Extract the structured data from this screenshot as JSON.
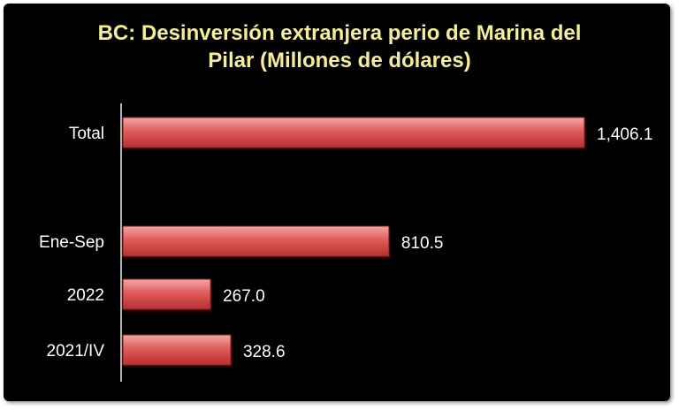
{
  "chart_data": {
    "type": "bar",
    "orientation": "horizontal",
    "title_lines": [
      "BC: Desinversión extranjera perio de Marina del",
      "Pilar  (Millones de dólares)"
    ],
    "categories": [
      "Total",
      "Ene-Sep",
      "2022",
      "2021/IV"
    ],
    "values": [
      1406.1,
      810.5,
      267.0,
      328.6
    ],
    "value_labels": [
      "1,406.1",
      "810.5",
      "267.0",
      "328.6"
    ],
    "xlim": [
      0,
      1406.1
    ],
    "grid": false,
    "legend": "none",
    "colors": {
      "background": "#000000",
      "title": "#f4ee9a",
      "bar_top": "#f0a8a8",
      "bar_mid": "#e05c5c",
      "bar_bottom": "#b92f2f",
      "bar_edge": "#8c1f1f",
      "axis": "#f0f0f0",
      "text": "#ffffff"
    }
  }
}
